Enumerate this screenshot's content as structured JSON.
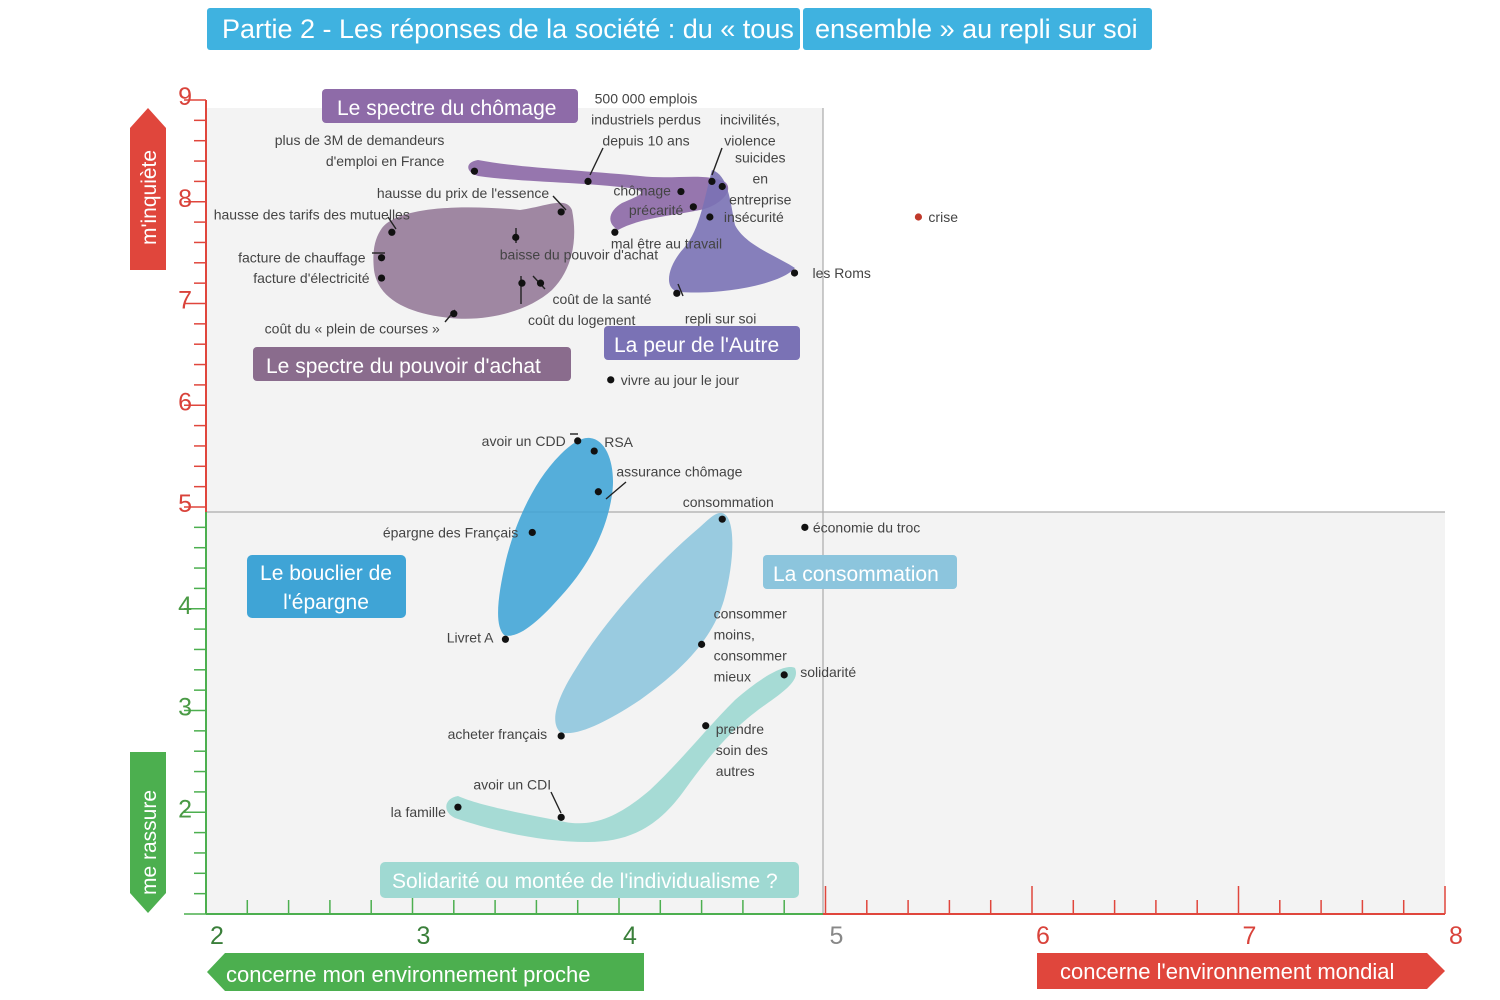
{
  "title_left": "Partie 2 - Les réponses de la société : du « tous",
  "title_right": "ensemble » au repli sur soi",
  "colors": {
    "title_bg": "#3fb2e0",
    "red": "#e0463c",
    "green": "#4caf4f",
    "chomage": "#8e6ba8",
    "pouvoir": "#8a6c8d",
    "autre": "#7a72b5",
    "epargne": "#3fa4d6",
    "consommation": "#8cc5dd",
    "solidarite": "#9fd9d2"
  },
  "axes": {
    "y_top_label": "m'inquiète",
    "y_bottom_label": "me rassure",
    "x_left_label": "concerne mon environnement proche",
    "x_right_label": "concerne l'environnement mondial"
  },
  "chart_data": {
    "type": "scatter",
    "xlim": [
      2,
      8
    ],
    "ylim": [
      1,
      9
    ],
    "x_ticks": [
      "2",
      "3",
      "4",
      "5",
      "6",
      "7",
      "8"
    ],
    "y_ticks": [
      "9",
      "8",
      "7",
      "6",
      "5",
      "4",
      "3",
      "2"
    ],
    "groups": [
      {
        "key": "chomage",
        "label": "Le spectre du chômage"
      },
      {
        "key": "pouvoir",
        "label": "Le spectre du pouvoir d'achat"
      },
      {
        "key": "autre",
        "label": "La peur de l'Autre"
      },
      {
        "key": "epargne",
        "label_lines": [
          "Le bouclier de",
          "l'épargne"
        ]
      },
      {
        "key": "consommation",
        "label": "La consommation"
      },
      {
        "key": "solidarite",
        "label": "Solidarité ou montée de l'individualisme ?"
      }
    ],
    "points": [
      {
        "label_lines": [
          "plus de 3M de demandeurs",
          "d'emploi en France"
        ],
        "x": 3.3,
        "y": 8.3
      },
      {
        "label_lines": [
          "500 000 emplois",
          "industriels perdus",
          "depuis 10 ans"
        ],
        "x": 3.85,
        "y": 8.2
      },
      {
        "label_lines": [
          "incivilités,",
          "violence"
        ],
        "x": 4.45,
        "y": 8.2
      },
      {
        "label_lines": [
          "suicides",
          "en",
          "entreprise"
        ],
        "x": 4.5,
        "y": 8.15
      },
      {
        "label_lines": [
          "chômage"
        ],
        "x": 4.3,
        "y": 8.1
      },
      {
        "label_lines": [
          "précarité"
        ],
        "x": 4.36,
        "y": 7.95
      },
      {
        "label_lines": [
          "insécurité"
        ],
        "x": 4.44,
        "y": 7.85
      },
      {
        "label_lines": [
          "hausse du prix de l'essence"
        ],
        "x": 3.72,
        "y": 7.9
      },
      {
        "label_lines": [
          "hausse des tarifs des mutuelles"
        ],
        "x": 2.9,
        "y": 7.7
      },
      {
        "label_lines": [
          "mal être au travail"
        ],
        "x": 3.98,
        "y": 7.7
      },
      {
        "label_lines": [
          "baisse du pouvoir d'achat"
        ],
        "x": 3.5,
        "y": 7.65
      },
      {
        "label_lines": [
          "facture de chauffage"
        ],
        "x": 2.85,
        "y": 7.45
      },
      {
        "label_lines": [
          "facture d'électricité"
        ],
        "x": 2.85,
        "y": 7.25
      },
      {
        "label_lines": [
          "coût de la santé"
        ],
        "x": 3.62,
        "y": 7.2
      },
      {
        "label_lines": [
          "coût du logement"
        ],
        "x": 3.53,
        "y": 7.2
      },
      {
        "label_lines": [
          "coût du « plein de courses »"
        ],
        "x": 3.2,
        "y": 6.9
      },
      {
        "label_lines": [
          "les Roms"
        ],
        "x": 4.85,
        "y": 7.3
      },
      {
        "label_lines": [
          "repli sur soi"
        ],
        "x": 4.28,
        "y": 7.1
      },
      {
        "label_lines": [
          "crise"
        ],
        "x": 5.45,
        "y": 7.85
      },
      {
        "label_lines": [
          "vivre au jour le jour"
        ],
        "x": 3.96,
        "y": 6.25
      },
      {
        "label_lines": [
          "avoir un CDD"
        ],
        "x": 3.8,
        "y": 5.65
      },
      {
        "label_lines": [
          "RSA"
        ],
        "x": 3.88,
        "y": 5.55
      },
      {
        "label_lines": [
          "assurance chômage"
        ],
        "x": 3.9,
        "y": 5.15
      },
      {
        "label_lines": [
          "consommation"
        ],
        "x": 4.5,
        "y": 4.88
      },
      {
        "label_lines": [
          "économie du troc"
        ],
        "x": 4.9,
        "y": 4.8
      },
      {
        "label_lines": [
          "épargne des Français"
        ],
        "x": 3.58,
        "y": 4.75
      },
      {
        "label_lines": [
          "Livret A"
        ],
        "x": 3.45,
        "y": 3.7
      },
      {
        "label_lines": [
          "consommer",
          "moins,",
          "consommer",
          "mieux"
        ],
        "x": 4.4,
        "y": 3.65
      },
      {
        "label_lines": [
          "solidarité"
        ],
        "x": 4.8,
        "y": 3.35
      },
      {
        "label_lines": [
          "prendre",
          "soin des",
          "autres"
        ],
        "x": 4.42,
        "y": 2.85
      },
      {
        "label_lines": [
          "acheter français"
        ],
        "x": 3.72,
        "y": 2.75
      },
      {
        "label_lines": [
          "avoir un CDI"
        ],
        "x": 3.72,
        "y": 1.95
      },
      {
        "label_lines": [
          "la famille"
        ],
        "x": 3.22,
        "y": 2.05
      }
    ]
  }
}
